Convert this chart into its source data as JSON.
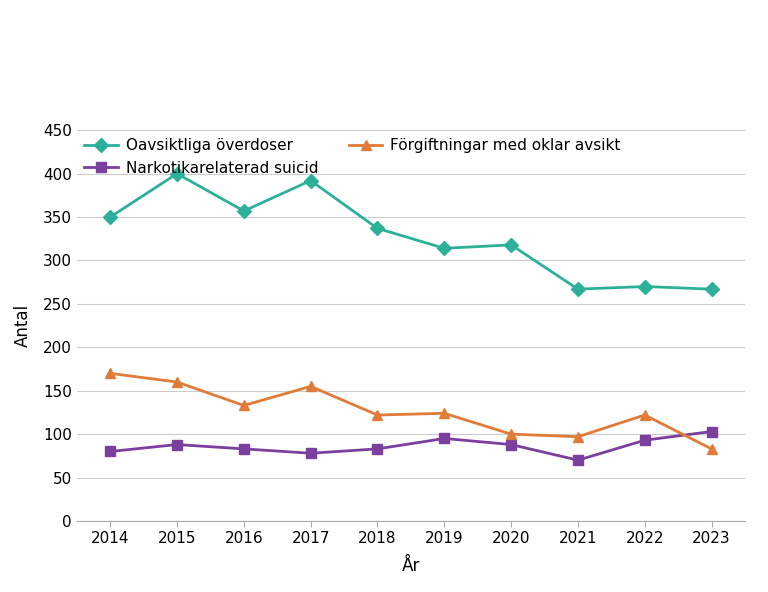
{
  "years": [
    2014,
    2015,
    2016,
    2017,
    2018,
    2019,
    2020,
    2021,
    2022,
    2023
  ],
  "oavsiktliga": [
    350,
    400,
    357,
    392,
    337,
    314,
    318,
    267,
    270,
    267
  ],
  "suicid": [
    80,
    88,
    83,
    78,
    83,
    95,
    88,
    70,
    93,
    103
  ],
  "forgiftningar": [
    170,
    160,
    133,
    155,
    122,
    124,
    100,
    97,
    122,
    83
  ],
  "oavsiktliga_color": "#2db09a",
  "suicid_color": "#7b3f9e",
  "forgiftningar_color": "#e07b39",
  "oavsiktliga_label": "Oavsiktliga överdoser",
  "suicid_label": "Narkotikarelaterad suicid",
  "forgiftningar_label": "Förgiftningar med oklar avsikt",
  "xlabel": "År",
  "ylabel": "Antal",
  "ylim": [
    0,
    450
  ],
  "yticks": [
    0,
    50,
    100,
    150,
    200,
    250,
    300,
    350,
    400,
    450
  ],
  "background_color": "#ffffff",
  "grid_color": "#cccccc",
  "marker_size": 7,
  "line_width": 2,
  "font_size": 11,
  "label_font_size": 12
}
